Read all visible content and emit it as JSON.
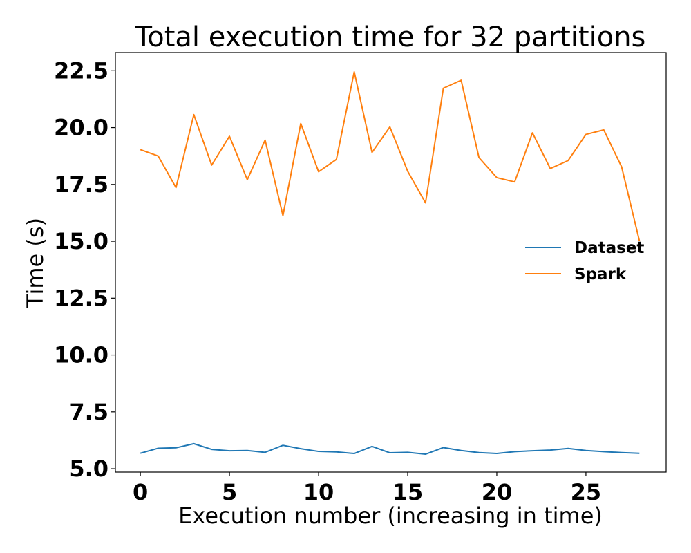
{
  "chart_data": {
    "type": "line",
    "title": "Total execution time for 32 partitions",
    "xlabel": "Execution number (increasing in time)",
    "ylabel": "Time (s)",
    "xlim": [
      -1.4,
      29.5
    ],
    "ylim": [
      4.85,
      23.3
    ],
    "xticks": [
      0,
      5,
      10,
      15,
      20,
      25
    ],
    "xtick_labels": [
      "0",
      "5",
      "10",
      "15",
      "20",
      "25"
    ],
    "yticks": [
      5.0,
      7.5,
      10.0,
      12.5,
      15.0,
      17.5,
      20.0,
      22.5
    ],
    "ytick_labels": [
      "5.0",
      "7.5",
      "10.0",
      "12.5",
      "15.0",
      "17.5",
      "20.0",
      "22.5"
    ],
    "grid": false,
    "legend_position": "center-right",
    "x": [
      0,
      1,
      2,
      3,
      4,
      5,
      6,
      7,
      8,
      9,
      10,
      11,
      12,
      13,
      14,
      15,
      16,
      17,
      18,
      19,
      20,
      21,
      22,
      23,
      24,
      25,
      26,
      27,
      28
    ],
    "series": [
      {
        "name": "Dataset",
        "color": "#1f77b4",
        "values": [
          5.68,
          5.9,
          5.92,
          6.1,
          5.85,
          5.79,
          5.8,
          5.72,
          6.03,
          5.88,
          5.76,
          5.74,
          5.67,
          5.98,
          5.7,
          5.72,
          5.64,
          5.93,
          5.8,
          5.71,
          5.67,
          5.75,
          5.79,
          5.82,
          5.89,
          5.8,
          5.75,
          5.71,
          5.68
        ]
      },
      {
        "name": "Spark",
        "color": "#ff7f0e",
        "values": [
          19.03,
          18.75,
          17.36,
          20.57,
          18.35,
          19.62,
          17.71,
          19.45,
          16.13,
          20.18,
          18.06,
          18.6,
          22.45,
          18.91,
          20.03,
          18.08,
          16.69,
          21.73,
          22.08,
          18.68,
          17.8,
          17.61,
          19.77,
          18.2,
          18.55,
          19.7,
          19.9,
          18.28,
          15.02
        ]
      }
    ]
  }
}
